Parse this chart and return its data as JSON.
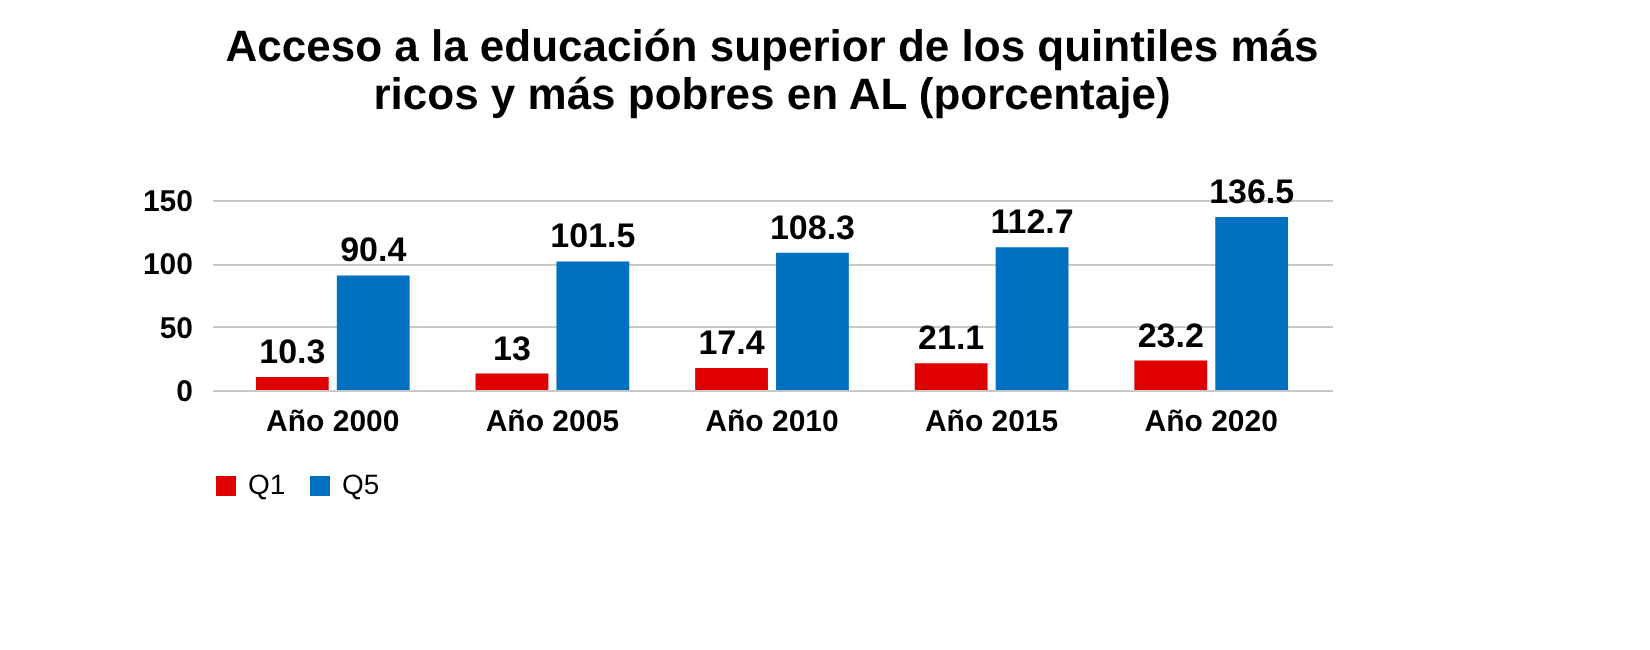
{
  "chart_data": {
    "type": "bar",
    "title": "Acceso a la educación superior de los quintiles más\nricos y más pobres en AL (porcentaje)",
    "categories": [
      "Año 2000",
      "Año 2005",
      "Año 2010",
      "Año 2015",
      "Año 2020"
    ],
    "series": [
      {
        "name": "Q1",
        "color": "#e00000",
        "values": [
          10.3,
          13,
          17.4,
          21.1,
          23.2
        ]
      },
      {
        "name": "Q5",
        "color": "#0070c0",
        "values": [
          90.4,
          101.5,
          108.3,
          112.7,
          136.5
        ]
      }
    ],
    "ylim": [
      0,
      150
    ],
    "yticks": [
      0,
      50,
      100,
      150
    ],
    "grid": "y",
    "legend": "bottom",
    "data_labels": true
  }
}
